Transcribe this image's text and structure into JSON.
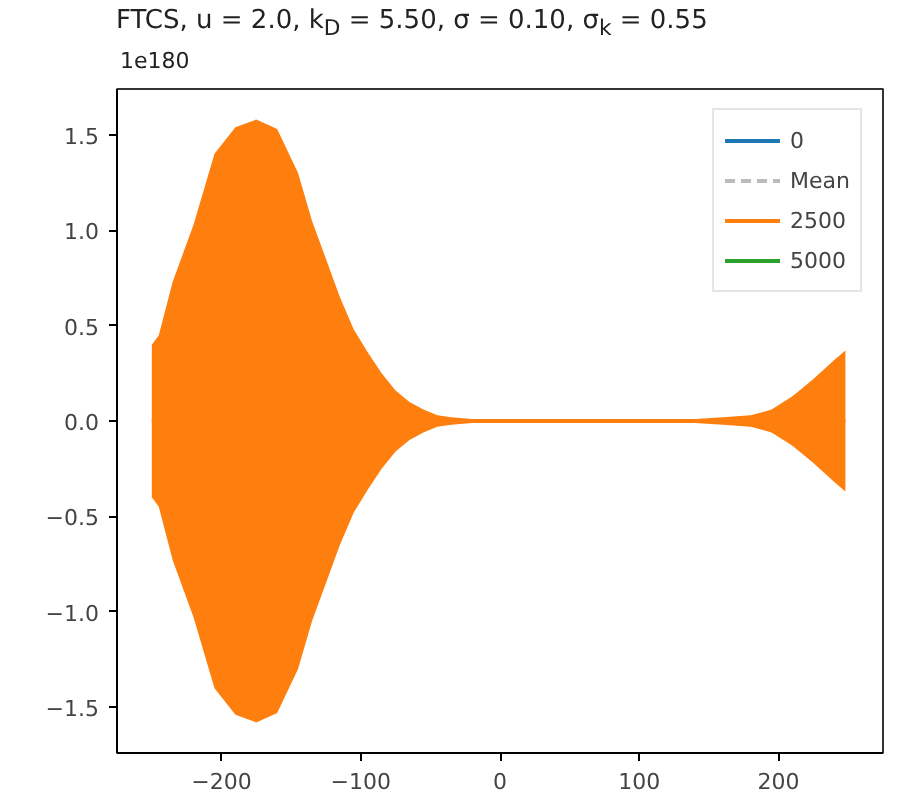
{
  "chart_data": {
    "type": "line",
    "title": "FTCS, u = 2.0, k$_{D}$ = 5.50, σ = 0.10, σ$_{k}$ = 0.55",
    "annotations": [
      "1e180"
    ],
    "xlim": [
      -275,
      275
    ],
    "xticks": [
      -200,
      -100,
      0,
      100,
      200
    ],
    "ylim": [
      -1.74,
      1.74
    ],
    "yticks": [
      {
        "value": -1.5,
        "label": "−1.5"
      },
      {
        "value": -1.0,
        "label": "−1.0"
      },
      {
        "value": -0.5,
        "label": "−0.5"
      },
      {
        "value": 0.0,
        "label": "0.0"
      },
      {
        "value": 0.5,
        "label": "0.5"
      },
      {
        "value": 1.0,
        "label": "1.0"
      },
      {
        "value": 1.5,
        "label": "1.5"
      }
    ],
    "grid": false,
    "legend": "top right",
    "series": [
      {
        "name": "0",
        "color": "#1f77b4"
      },
      {
        "name": "Mean",
        "color": "#bbbbbb",
        "line_style": "dashed"
      },
      {
        "name": "2500",
        "color": "#ff7f0e",
        "x": [
          -250,
          -245,
          -235,
          -220,
          -205,
          -190,
          -175,
          -160,
          -145,
          -135,
          -125,
          -115,
          -105,
          -95,
          -85,
          -75,
          -65,
          -55,
          -45,
          -35,
          -20,
          0,
          50,
          100,
          140,
          160,
          180,
          195,
          210,
          225,
          240,
          248
        ],
        "values": [
          0,
          0,
          0,
          0,
          0,
          0,
          0,
          0,
          0,
          0,
          0,
          0,
          0,
          0,
          0,
          0,
          0,
          0,
          0,
          0,
          0,
          0,
          0,
          0,
          0,
          0,
          0,
          0,
          0,
          0,
          0,
          0
        ],
        "upper": [
          0.4,
          0.45,
          0.73,
          1.03,
          1.4,
          1.54,
          1.58,
          1.53,
          1.3,
          1.05,
          0.85,
          0.65,
          0.48,
          0.36,
          0.25,
          0.16,
          0.1,
          0.06,
          0.03,
          0.02,
          0.01,
          0,
          0,
          0,
          0.01,
          0.02,
          0.03,
          0.06,
          0.13,
          0.22,
          0.32,
          0.37
        ],
        "lower": [
          -0.4,
          -0.45,
          -0.73,
          -1.03,
          -1.4,
          -1.54,
          -1.58,
          -1.53,
          -1.3,
          -1.05,
          -0.85,
          -0.65,
          -0.48,
          -0.36,
          -0.25,
          -0.16,
          -0.1,
          -0.06,
          -0.03,
          -0.02,
          -0.01,
          0,
          0,
          0,
          -0.01,
          -0.02,
          -0.03,
          -0.06,
          -0.13,
          -0.22,
          -0.32,
          -0.37
        ]
      },
      {
        "name": "5000",
        "color": "#2ca02c"
      }
    ]
  }
}
